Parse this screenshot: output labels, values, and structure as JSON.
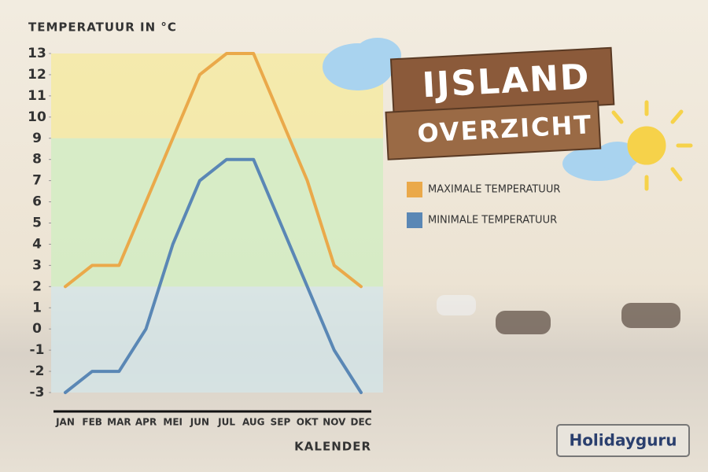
{
  "chart_data": {
    "type": "line",
    "title": "IJSLAND",
    "subtitle": "OVERZICHT",
    "y_label": "TEMPERATUUR IN °C",
    "x_label": "KALENDER",
    "brand": "Holidayguru",
    "categories": [
      "JAN",
      "FEB",
      "MAR",
      "APR",
      "MEI",
      "JUN",
      "JUL",
      "AUG",
      "SEP",
      "OKT",
      "NOV",
      "DEC"
    ],
    "series": [
      {
        "name": "MAXIMALE TEMPERATUUR",
        "color": "#eaa94a",
        "values": [
          2,
          3,
          3,
          6,
          9,
          12,
          13,
          13,
          10,
          7,
          3,
          2
        ]
      },
      {
        "name": "MINIMALE TEMPERATUUR",
        "color": "#5a87b5",
        "values": [
          -3,
          -2,
          -2,
          0,
          4,
          7,
          8,
          8,
          5,
          2,
          -1,
          -3
        ]
      }
    ],
    "bands": [
      {
        "from": 9,
        "to": 13,
        "color": "#f6ea9c"
      },
      {
        "from": 2,
        "to": 9,
        "color": "#cfeec0"
      },
      {
        "from": -3,
        "to": 2,
        "color": "#d3e6ea"
      }
    ],
    "ylim": [
      -3,
      13
    ],
    "yticks": [
      -3,
      -2,
      -1,
      0,
      1,
      2,
      3,
      4,
      5,
      6,
      7,
      8,
      9,
      10,
      11,
      12,
      13
    ]
  }
}
